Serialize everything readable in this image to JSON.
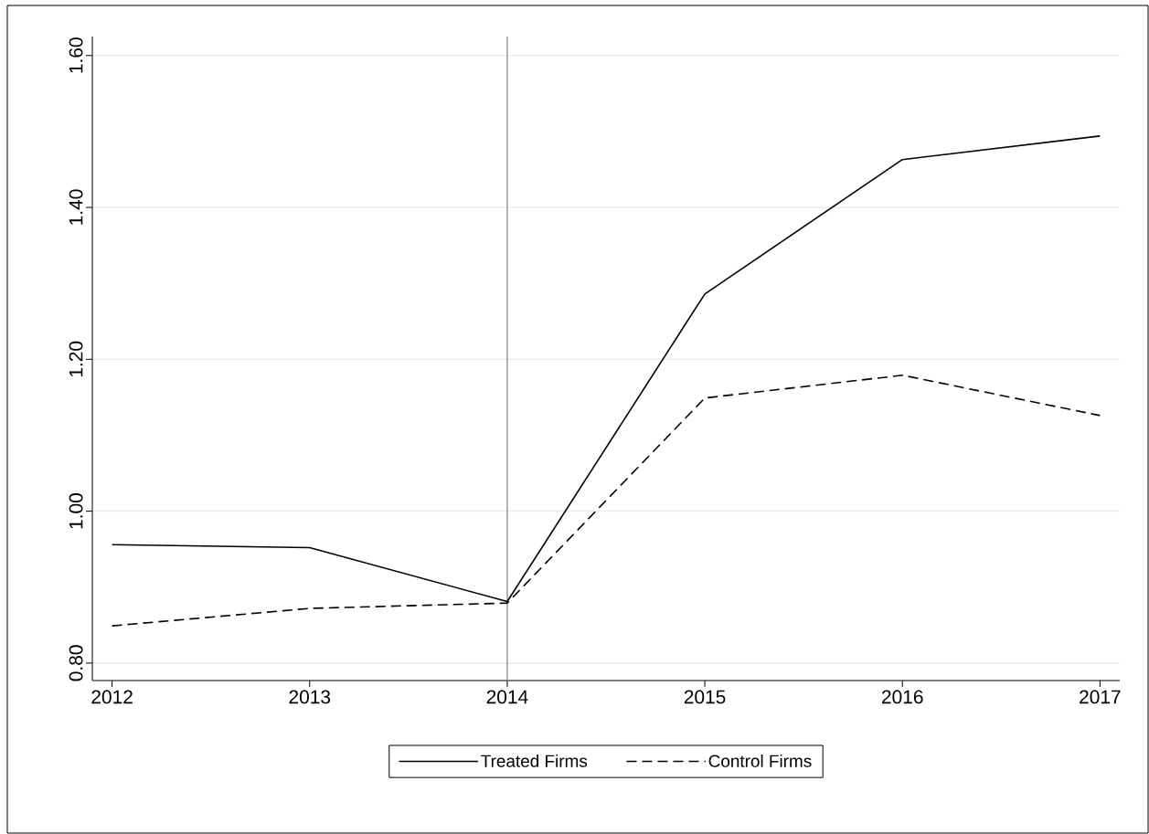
{
  "chart_data": {
    "type": "line",
    "x": [
      2012,
      2013,
      2014,
      2015,
      2016,
      2017
    ],
    "series": [
      {
        "name": "Treated Firms",
        "color": "#000000",
        "line_style": "solid",
        "values": [
          0.956,
          0.952,
          0.881,
          1.286,
          1.463,
          1.494
        ]
      },
      {
        "name": "Control Firms",
        "color": "#000000",
        "line_style": "dashed",
        "values": [
          0.849,
          0.872,
          0.879,
          1.149,
          1.179,
          1.126
        ]
      }
    ],
    "xlim": [
      2011.9,
      2017.1
    ],
    "xticks": [
      2012,
      2013,
      2014,
      2015,
      2016,
      2017
    ],
    "ylim": [
      0.777,
      1.625
    ],
    "yticks": [
      {
        "value": 0.8,
        "label": "0.80"
      },
      {
        "value": 1.0,
        "label": "1.00"
      },
      {
        "value": 1.2,
        "label": "1.20"
      },
      {
        "value": 1.4,
        "label": "1.40"
      },
      {
        "value": 1.6,
        "label": "1.60"
      }
    ],
    "grid": "y",
    "legend": "bottom",
    "marker": "none",
    "ref_lines": [
      {
        "axis": "x",
        "value": 2014,
        "color": "#999999"
      }
    ]
  }
}
